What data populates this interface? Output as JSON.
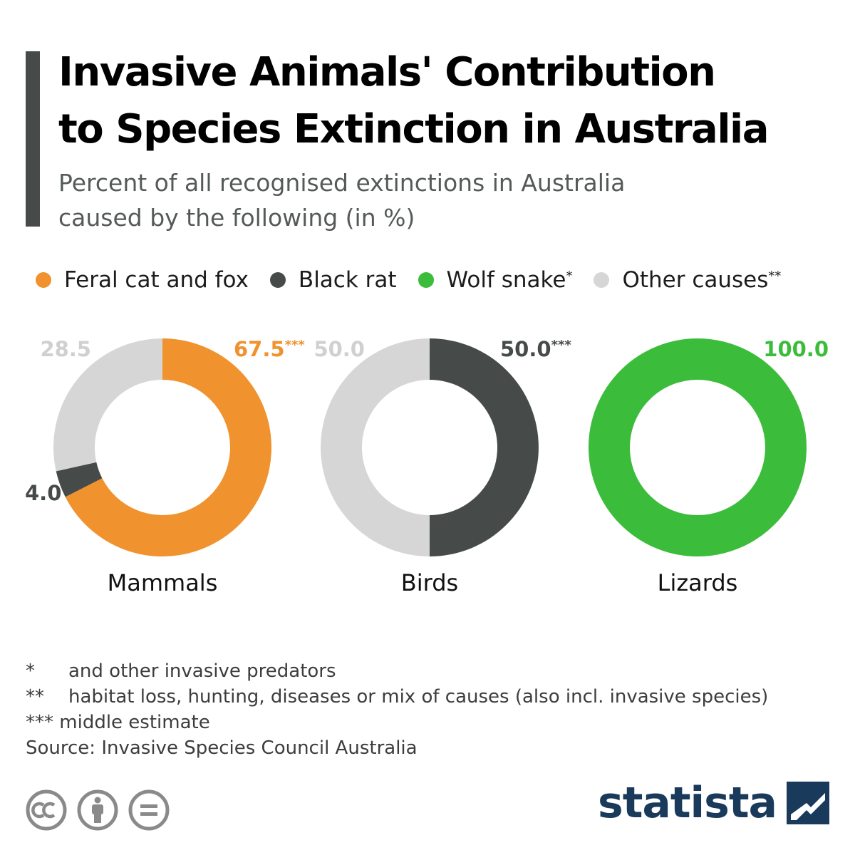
{
  "header": {
    "title_line1": "Invasive Animals' Contribution",
    "title_line2": "to Species Extinction in Australia",
    "subtitle_line1": "Percent of all recognised extinctions in Australia",
    "subtitle_line2": "caused by the following (in %)"
  },
  "legend": [
    {
      "label": "Feral cat and fox",
      "mark": "",
      "color": "#f0922e"
    },
    {
      "label": "Black rat",
      "mark": "",
      "color": "#464b4a"
    },
    {
      "label": "Wolf snake",
      "mark": "*",
      "color": "#3bbd3b"
    },
    {
      "label": "Other causes",
      "mark": "**",
      "color": "#d6d6d6"
    }
  ],
  "chart_data": {
    "type": "donut",
    "series_names": [
      "Feral cat and fox",
      "Black rat",
      "Wolf snake",
      "Other causes"
    ],
    "charts": [
      {
        "category": "Mammals",
        "slices": [
          {
            "name": "Feral cat and fox",
            "value": 67.5,
            "label": "67.5",
            "mark": "***",
            "color": "#f0922e",
            "label_color": "#f0922e"
          },
          {
            "name": "Black rat",
            "value": 4.0,
            "label": "4.0",
            "mark": "",
            "color": "#464b4a",
            "label_color": "#464b4a"
          },
          {
            "name": "Other causes",
            "value": 28.5,
            "label": "28.5",
            "mark": "",
            "color": "#d6d6d6",
            "label_color": "#d0d0d0"
          }
        ]
      },
      {
        "category": "Birds",
        "slices": [
          {
            "name": "Black rat",
            "value": 50.0,
            "label": "50.0",
            "mark": "***",
            "color": "#464b4a",
            "label_color": "#464b4a"
          },
          {
            "name": "Other causes",
            "value": 50.0,
            "label": "50.0",
            "mark": "",
            "color": "#d6d6d6",
            "label_color": "#d0d0d0"
          }
        ]
      },
      {
        "category": "Lizards",
        "slices": [
          {
            "name": "Wolf snake",
            "value": 100.0,
            "label": "100.0",
            "mark": "",
            "color": "#3bbd3b",
            "label_color": "#3bbd3b"
          }
        ]
      }
    ]
  },
  "footnotes": [
    {
      "mark": "*",
      "text": "and other invasive predators"
    },
    {
      "mark": "**",
      "text": "habitat loss, hunting, diseases or mix of causes (also incl. invasive species)"
    },
    {
      "mark": "***",
      "text": "middle estimate"
    }
  ],
  "source": "Source: Invasive Species Council Australia",
  "brand": {
    "name": "statista"
  },
  "icons": [
    "cc-icon",
    "attribution-icon",
    "no-derivatives-icon",
    "statista-logo-icon"
  ]
}
